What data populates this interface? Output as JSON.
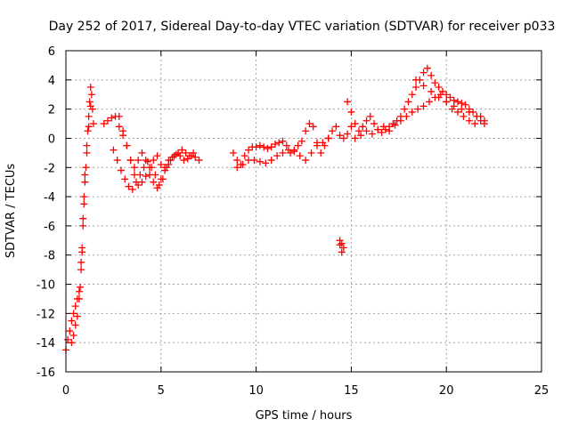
{
  "chart_data": {
    "type": "scatter",
    "title": "Day 252 of 2017, Sidereal Day-to-day VTEC variation (SDTVAR) for receiver p033",
    "xlabel": "GPS time / hours",
    "ylabel": "SDTVAR / TECUs",
    "xlim": [
      0,
      25
    ],
    "ylim": [
      -16,
      6
    ],
    "xticks": [
      0,
      5,
      10,
      15,
      20,
      25
    ],
    "yticks": [
      -16,
      -14,
      -12,
      -10,
      -8,
      -6,
      -4,
      -2,
      0,
      2,
      4,
      6
    ],
    "grid": true,
    "marker": "+",
    "color": "#ff0000",
    "series": [
      {
        "name": "SDTVAR",
        "x": [
          0.0,
          0.1,
          0.2,
          0.3,
          0.4,
          0.5,
          0.6,
          0.7,
          0.8,
          0.85,
          0.9,
          0.95,
          1.0,
          1.05,
          1.1,
          1.15,
          1.2,
          1.25,
          1.3,
          1.35,
          1.4,
          1.45,
          0.3,
          0.4,
          0.5,
          0.6,
          0.7,
          0.75,
          0.8,
          0.85,
          0.9,
          0.95,
          1.0,
          1.1,
          1.2,
          1.3,
          2.0,
          2.2,
          2.4,
          2.6,
          2.8,
          3.0,
          3.2,
          3.4,
          3.6,
          3.8,
          4.0,
          4.2,
          4.4,
          4.6,
          4.8,
          5.0,
          5.2,
          5.4,
          5.6,
          5.8,
          6.0,
          6.2,
          6.4,
          6.6,
          6.8,
          7.0,
          2.5,
          2.7,
          2.9,
          3.1,
          3.3,
          3.5,
          3.7,
          3.9,
          4.1,
          4.3,
          4.5,
          4.7,
          4.9,
          5.1,
          5.3,
          5.5,
          5.7,
          5.9,
          6.1,
          6.3,
          6.5,
          6.7,
          2.8,
          3.0,
          3.2,
          3.4,
          3.6,
          3.8,
          4.0,
          4.2,
          4.4,
          4.6,
          4.8,
          5.0,
          5.2,
          5.4,
          8.8,
          9.0,
          9.2,
          9.4,
          9.6,
          9.8,
          10.0,
          10.2,
          10.4,
          10.6,
          10.8,
          11.0,
          11.2,
          11.4,
          11.6,
          11.8,
          12.0,
          12.2,
          12.4,
          12.6,
          12.8,
          13.0,
          13.2,
          13.4,
          13.6,
          13.8,
          14.0,
          14.2,
          14.4,
          14.6,
          14.8,
          15.0,
          9.0,
          9.3,
          9.6,
          9.9,
          10.2,
          10.5,
          10.8,
          11.1,
          11.4,
          11.7,
          12.0,
          12.3,
          12.6,
          12.9,
          13.2,
          13.5,
          13.8,
          14.4,
          14.5,
          14.6,
          14.5,
          14.4,
          14.8,
          15.0,
          15.2,
          15.4,
          15.6,
          15.8,
          16.0,
          16.2,
          16.4,
          16.6,
          16.8,
          17.0,
          17.2,
          17.4,
          17.6,
          17.8,
          18.0,
          18.2,
          18.4,
          18.6,
          18.8,
          19.0,
          19.2,
          19.4,
          19.6,
          19.8,
          20.0,
          20.2,
          20.4,
          20.6,
          20.8,
          21.0,
          21.2,
          21.4,
          21.6,
          21.8,
          22.0,
          17.6,
          17.9,
          18.2,
          18.5,
          18.8,
          19.1,
          19.4,
          19.7,
          20.0,
          20.3,
          20.6,
          20.9,
          21.2,
          21.5,
          21.8,
          18.4,
          18.8,
          19.2,
          19.6,
          20.0,
          20.4,
          20.8,
          21.2,
          21.6,
          22.0,
          15.2,
          15.5,
          15.8,
          16.1,
          16.4,
          16.7,
          17.0,
          17.3
        ],
        "y": [
          -14.5,
          -13.8,
          -13.2,
          -12.5,
          -12.0,
          -11.5,
          -11.0,
          -10.5,
          -9.0,
          -7.8,
          -6.0,
          -4.5,
          -3.0,
          -2.0,
          -0.5,
          0.5,
          1.5,
          2.5,
          3.5,
          3.0,
          2.0,
          1.0,
          -14.0,
          -13.5,
          -12.8,
          -12.2,
          -11.0,
          -10.2,
          -8.5,
          -7.5,
          -5.5,
          -4.0,
          -2.5,
          -1.0,
          0.8,
          2.2,
          1.0,
          1.2,
          1.4,
          1.5,
          0.8,
          0.2,
          -0.5,
          -1.5,
          -2.5,
          -3.2,
          -3.0,
          -2.6,
          -2.0,
          -1.5,
          -1.2,
          -1.8,
          -2.2,
          -1.8,
          -1.3,
          -1.1,
          -1.2,
          -1.5,
          -1.4,
          -1.2,
          -1.3,
          -1.5,
          -0.8,
          -1.5,
          -2.2,
          -2.8,
          -3.3,
          -3.5,
          -3.0,
          -2.5,
          -2.0,
          -1.6,
          -2.0,
          -2.5,
          -3.2,
          -2.8,
          -2.0,
          -1.5,
          -1.2,
          -1.0,
          -0.8,
          -1.0,
          -1.2,
          -1.0,
          1.5,
          0.5,
          -0.5,
          -1.5,
          -2.0,
          -1.5,
          -1.0,
          -1.5,
          -2.5,
          -3.0,
          -3.4,
          -2.8,
          -2.0,
          -1.5,
          -1.0,
          -1.5,
          -1.8,
          -1.2,
          -0.8,
          -0.6,
          -0.6,
          -0.5,
          -0.6,
          -0.7,
          -0.6,
          -0.4,
          -0.3,
          -0.2,
          -0.5,
          -1.0,
          -0.8,
          -0.5,
          -0.2,
          0.5,
          1.0,
          0.8,
          -0.3,
          -1.0,
          -0.5,
          0.0,
          0.5,
          0.8,
          0.2,
          0.0,
          0.3,
          0.8,
          -2.0,
          -1.8,
          -1.5,
          -1.5,
          -1.6,
          -1.7,
          -1.5,
          -1.2,
          -1.0,
          -0.8,
          -0.9,
          -1.2,
          -1.5,
          -1.0,
          -0.5,
          -0.3,
          0.0,
          -7.0,
          -7.2,
          -7.5,
          -7.8,
          -7.3,
          2.5,
          1.8,
          1.0,
          0.5,
          0.8,
          1.2,
          1.5,
          1.0,
          0.6,
          0.4,
          0.6,
          0.8,
          1.0,
          1.2,
          1.5,
          2.0,
          2.5,
          3.0,
          3.5,
          4.0,
          4.5,
          4.8,
          4.3,
          3.8,
          3.5,
          3.2,
          3.0,
          2.8,
          2.6,
          2.5,
          2.4,
          2.3,
          2.0,
          1.8,
          1.5,
          1.2,
          1.0,
          1.2,
          1.5,
          1.8,
          2.0,
          2.2,
          2.5,
          2.8,
          3.0,
          2.5,
          2.0,
          1.8,
          1.5,
          1.2,
          1.0,
          1.5,
          4.0,
          3.6,
          3.2,
          2.8,
          2.5,
          2.2,
          2.0,
          1.8,
          1.5,
          1.2,
          0.0,
          0.2,
          0.5,
          0.3,
          0.6,
          0.8,
          0.5,
          0.9
        ]
      }
    ]
  }
}
